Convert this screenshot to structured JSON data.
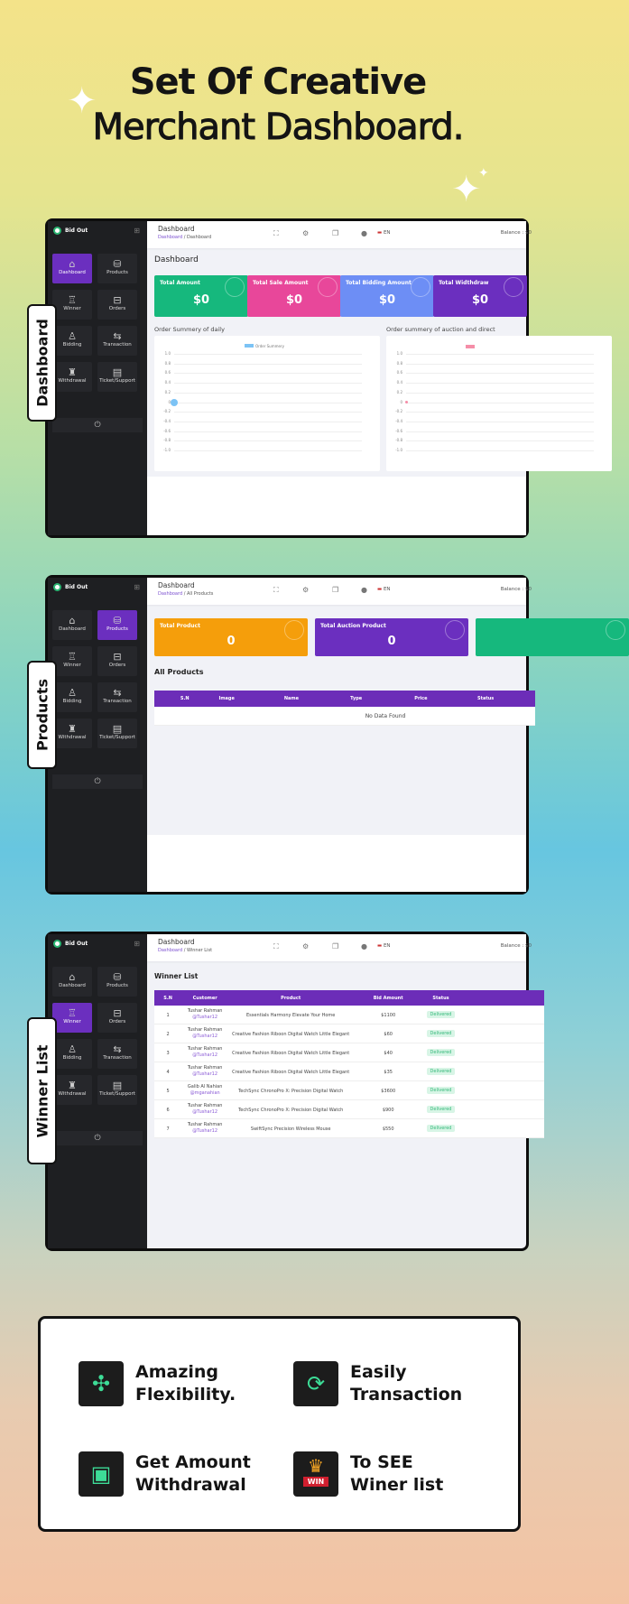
{
  "headline": {
    "line1": "Set Of Creative",
    "line2": "Merchant Dashboard."
  },
  "app": {
    "name": "Bid Out",
    "language": "EN",
    "balance": "Balance : $0",
    "topbar_title": "Dashboard",
    "breadcrumb_root": "Dashboard"
  },
  "sidebar": {
    "items": [
      {
        "label": "Dashboard",
        "icon": "home-icon"
      },
      {
        "label": "Products",
        "icon": "products-icon"
      },
      {
        "label": "Winner",
        "icon": "trophy-icon"
      },
      {
        "label": "Orders",
        "icon": "basket-icon"
      },
      {
        "label": "Bidding",
        "icon": "bidding-icon"
      },
      {
        "label": "Transaction",
        "icon": "transfer-icon"
      },
      {
        "label": "Withdrawal",
        "icon": "withdrawal-icon"
      },
      {
        "label": "Ticket/Support",
        "icon": "chat-icon"
      }
    ]
  },
  "screens": [
    {
      "tab_label": "Dashboard",
      "active": 0,
      "breadcrumb": "Dashboard",
      "heading": "Dashboard",
      "cards": [
        {
          "label": "Total Amount",
          "value": "$0",
          "color": "#16b87d"
        },
        {
          "label": "Total Sale Amount",
          "value": "$0",
          "color": "#e8479a"
        },
        {
          "label": "Total Bidding Amount",
          "value": "$0",
          "color": "#6d8ef5"
        },
        {
          "label": "Total Widthdraw",
          "value": "$0",
          "color": "#6b2fbf"
        }
      ],
      "charts": [
        {
          "title": "Order Summery of daily",
          "legend": "Order Summery",
          "color": "#7cc3f5",
          "yticks": [
            "1.0",
            "0.8",
            "0.6",
            "0.4",
            "0.2",
            "0",
            "-0.2",
            "-0.4",
            "-0.6",
            "-0.8",
            "-1.0"
          ],
          "points": [
            0
          ]
        },
        {
          "title": "Order summery of auction and direct",
          "legend": "",
          "color": "#f58ea8",
          "yticks": [
            "1.0",
            "0.8",
            "0.6",
            "0.4",
            "0.2",
            "0",
            "-0.2",
            "-0.4",
            "-0.6",
            "-0.8",
            "-1.0"
          ],
          "points": [
            0
          ]
        }
      ]
    },
    {
      "tab_label": "Products",
      "active": 1,
      "breadcrumb": "All Products",
      "heading": "All Products",
      "cards": [
        {
          "label": "Total Product",
          "value": "0",
          "color": "#f59e0b"
        },
        {
          "label": "Total Auction Product",
          "value": "0",
          "color": "#6b2fbf"
        },
        {
          "label": "",
          "value": "",
          "color": "#16b87d"
        }
      ],
      "columns": [
        "S.N",
        "Image",
        "Name",
        "Type",
        "Price",
        "Status"
      ],
      "empty": "No Data Found"
    },
    {
      "tab_label": "Winner List",
      "active": 2,
      "breadcrumb": "Winner List",
      "heading": "Winner List",
      "columns": [
        "S.N",
        "Customer",
        "Product",
        "Bid Amount",
        "Status"
      ],
      "rows": [
        [
          "1",
          "Tushar Rahman",
          "@Tushar12",
          "Essentials Harmony Elevate Your Home",
          "$1100",
          "Delivered"
        ],
        [
          "2",
          "Tushar Rahman",
          "@Tushar12",
          "Creative Fashion Riboon Digital Watch Little Elegant",
          "$60",
          "Delivered"
        ],
        [
          "3",
          "Tushar Rahman",
          "@Tushar12",
          "Creative Fashion Riboon Digital Watch Little Elegant",
          "$40",
          "Delivered"
        ],
        [
          "4",
          "Tushar Rahman",
          "@Tushar12",
          "Creative Fashion Riboon Digital Watch Little Elegant",
          "$35",
          "Delivered"
        ],
        [
          "5",
          "Galib Al Nahian",
          "@mganahian",
          "TechSync ChronoPro X: Precision Digital Watch",
          "$3600",
          "Delivered"
        ],
        [
          "6",
          "Tushar Rahman",
          "@Tushar12",
          "TechSync ChronoPro X: Precision Digital Watch",
          "$900",
          "Delivered"
        ],
        [
          "7",
          "Tushar Rahman",
          "@Tushar12",
          "SwiftSync Precision Wireless Mouse",
          "$550",
          "Delivered"
        ]
      ]
    }
  ],
  "features": [
    {
      "line1": "Amazing",
      "line2": "Flexibility.",
      "icon": "flexibility-arrows-icon"
    },
    {
      "line1": "Easily",
      "line2": "Transaction",
      "icon": "dollar-cycle-icon"
    },
    {
      "line1": "Get Amount",
      "line2": "Withdrawal",
      "icon": "atm-withdraw-icon"
    },
    {
      "line1": "To SEE",
      "line2": "Winer list",
      "icon": "win-crown-icon",
      "badge": "WIN"
    }
  ]
}
